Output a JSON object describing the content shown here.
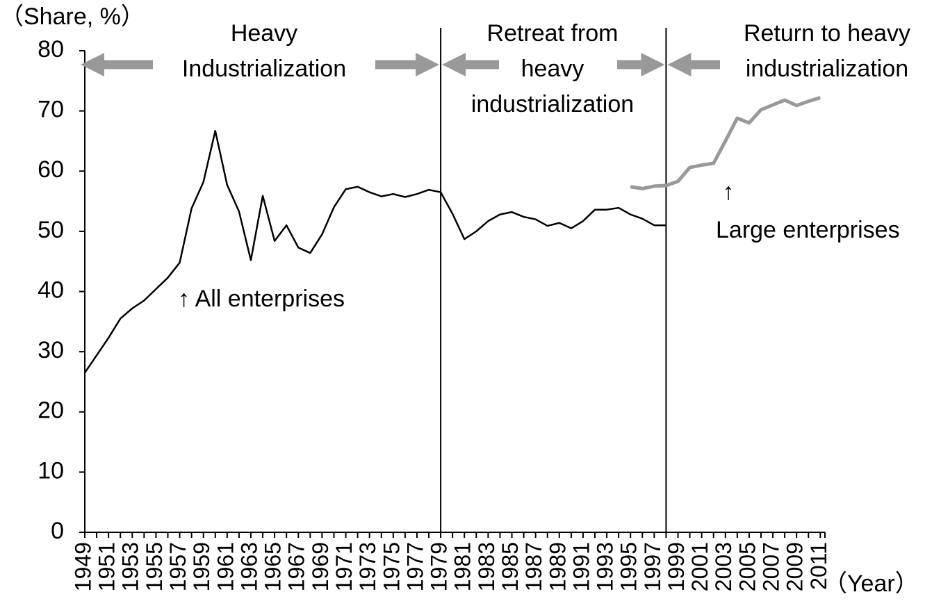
{
  "chart_data": {
    "type": "line",
    "y_label": "（Share, %）",
    "x_label": "（Year）",
    "categories": [
      "1949",
      null,
      "1951",
      null,
      "1953",
      null,
      "1955",
      null,
      "1957",
      null,
      "1959",
      null,
      "1961",
      null,
      "1963",
      null,
      "1965",
      null,
      "1967",
      null,
      "1969",
      null,
      "1971",
      null,
      "1973",
      null,
      "1975",
      null,
      "1977",
      null,
      "1979",
      null,
      "1981",
      null,
      "1983",
      null,
      "1985",
      null,
      "1987",
      null,
      "1989",
      null,
      "1991",
      null,
      "1993",
      null,
      "1995",
      null,
      "1997",
      null,
      "1999",
      null,
      "2001",
      null,
      "2003",
      null,
      "2005",
      null,
      "2007",
      null,
      "2009",
      null,
      "2011"
    ],
    "series": [
      {
        "name": "↑ All enterprises",
        "color": "#000000",
        "width": 2.5,
        "values": [
          26.5,
          29.4,
          32.3,
          35.5,
          37.2,
          38.5,
          40.4,
          42.3,
          44.8,
          53.8,
          58.2,
          66.7,
          57.7,
          53.3,
          45.2,
          55.9,
          48.4,
          51.0,
          47.3,
          46.4,
          49.5,
          54.0,
          57.0,
          57.4,
          56.5,
          55.8,
          56.2,
          55.7,
          56.2,
          56.9,
          56.5,
          52.9,
          48.7,
          50.0,
          51.7,
          52.8,
          53.2,
          52.4,
          52.0,
          50.9,
          51.4,
          50.5,
          51.7,
          53.6,
          53.6,
          53.9,
          52.8,
          52.1,
          51.0,
          51.0,
          null,
          null,
          null,
          null,
          null,
          null,
          null,
          null,
          null,
          null,
          null,
          null,
          null
        ]
      },
      {
        "name": "Large enterprises",
        "color": "#999999",
        "width": 5,
        "values": [
          null,
          null,
          null,
          null,
          null,
          null,
          null,
          null,
          null,
          null,
          null,
          null,
          null,
          null,
          null,
          null,
          null,
          null,
          null,
          null,
          null,
          null,
          null,
          null,
          null,
          null,
          null,
          null,
          null,
          null,
          null,
          null,
          null,
          null,
          null,
          null,
          null,
          null,
          null,
          null,
          null,
          null,
          null,
          null,
          null,
          null,
          57.4,
          57.1,
          57.5,
          57.6,
          58.3,
          60.6,
          61.0,
          61.3,
          65.0,
          68.8,
          68.0,
          70.2,
          71.0,
          71.8,
          70.9,
          71.6,
          72.2
        ]
      }
    ],
    "period_boundaries": [
      1979,
      1998
    ],
    "periods": [
      [
        "Heavy",
        "Industrialization"
      ],
      [
        "Retreat from",
        "heavy",
        "industrialization"
      ],
      [
        "Return to heavy",
        "industrialization"
      ]
    ],
    "large_marker": "↑",
    "ylim": [
      0,
      80
    ],
    "yticks": [
      0,
      10,
      20,
      30,
      40,
      50,
      60,
      70,
      80
    ]
  }
}
